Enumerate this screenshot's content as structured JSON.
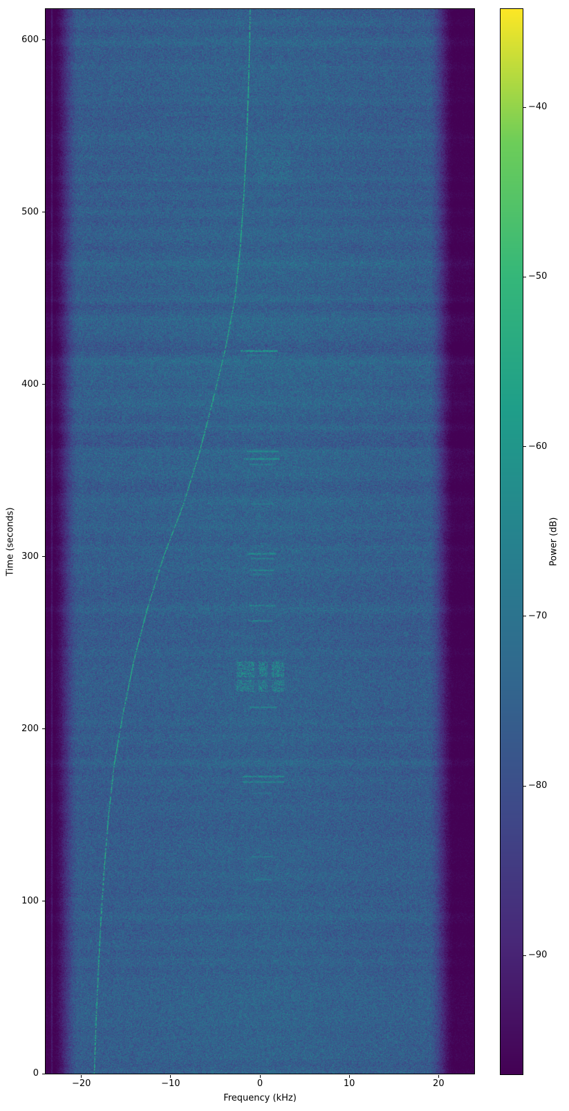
{
  "figure": {
    "xlabel": "Frequency (kHz)",
    "ylabel": "Time (seconds)",
    "colorbar_label": "Power (dB)"
  },
  "chart_data": {
    "type": "heatmap",
    "subtype": "spectrogram-waterfall",
    "title": "",
    "xlabel": "Frequency (kHz)",
    "ylabel": "Time (seconds)",
    "colorbar_label": "Power (dB)",
    "colormap": "viridis",
    "grid": false,
    "x_range_khz": [
      -24,
      24
    ],
    "y_range_s": [
      0,
      618
    ],
    "x_ticks": [
      {
        "value": -20,
        "label": "−20"
      },
      {
        "value": -10,
        "label": "−10"
      },
      {
        "value": 0,
        "label": "0"
      },
      {
        "value": 10,
        "label": "10"
      },
      {
        "value": 20,
        "label": "20"
      }
    ],
    "y_ticks": [
      {
        "value": 0,
        "label": "0"
      },
      {
        "value": 100,
        "label": "100"
      },
      {
        "value": 200,
        "label": "200"
      },
      {
        "value": 300,
        "label": "300"
      },
      {
        "value": 400,
        "label": "400"
      },
      {
        "value": 500,
        "label": "500"
      },
      {
        "value": 600,
        "label": "600"
      }
    ],
    "colorbar": {
      "vmin": -97,
      "vmax": -34.2,
      "ticks": [
        {
          "value": -40,
          "label": "−40"
        },
        {
          "value": -50,
          "label": "−50"
        },
        {
          "value": -60,
          "label": "−60"
        },
        {
          "value": -70,
          "label": "−70"
        },
        {
          "value": -80,
          "label": "−80"
        },
        {
          "value": -90,
          "label": "−90"
        }
      ]
    },
    "noise": {
      "mean_db": -76.5,
      "spread_db": 9,
      "center_boost_db": 1.5,
      "sparkle_prob": 0.012,
      "sparkle_boost_db": 6
    },
    "band_edges": {
      "left_rolloff_start_khz": -20.2,
      "left_rolloff_end_khz": -23.2,
      "right_rolloff_start_khz": 18.8,
      "right_rolloff_end_khz": 21.8,
      "floor_attenuation_db": 21,
      "edge_artifact_line_khz": -23.3,
      "edge_artifact_boost_db": 5
    },
    "row_bands": [
      [
        598,
        1.4
      ],
      [
        584,
        1.0
      ],
      [
        571,
        1.3
      ],
      [
        557,
        0.9
      ],
      [
        544,
        1.1
      ],
      [
        531,
        0.9
      ],
      [
        519,
        1.0
      ],
      [
        489,
        1.0
      ],
      [
        470,
        1.2
      ],
      [
        460,
        1.5
      ],
      [
        449,
        1.3
      ],
      [
        438,
        1.2
      ],
      [
        426,
        1.4
      ],
      [
        413,
        1.6
      ],
      [
        401,
        1.2
      ],
      [
        389,
        1.0
      ],
      [
        375,
        1.1
      ],
      [
        362,
        1.3
      ],
      [
        347,
        1.0
      ],
      [
        333,
        0.9
      ],
      [
        318,
        1.0
      ],
      [
        305,
        1.1
      ],
      [
        292,
        1.0
      ],
      [
        269,
        0.9
      ],
      [
        244,
        0.8
      ],
      [
        203,
        0.9
      ],
      [
        181,
        1.0
      ],
      [
        92,
        0.8
      ]
    ],
    "doppler_trace": {
      "level_db": -51,
      "dash_gap_prob": 0.24,
      "points_t_s_f_khz": [
        [
          0,
          -18.55
        ],
        [
          30,
          -18.35
        ],
        [
          60,
          -18.1
        ],
        [
          90,
          -17.8
        ],
        [
          120,
          -17.42
        ],
        [
          150,
          -16.95
        ],
        [
          180,
          -16.3
        ],
        [
          210,
          -15.3
        ],
        [
          240,
          -14.1
        ],
        [
          270,
          -12.6
        ],
        [
          300,
          -10.8
        ],
        [
          330,
          -8.6
        ],
        [
          360,
          -6.8
        ],
        [
          390,
          -5.3
        ],
        [
          420,
          -3.9
        ],
        [
          450,
          -2.8
        ],
        [
          480,
          -2.2
        ],
        [
          510,
          -1.8
        ],
        [
          540,
          -1.5
        ],
        [
          570,
          -1.3
        ],
        [
          600,
          -1.15
        ],
        [
          618,
          -1.1
        ]
      ]
    },
    "bursts_t_f0_f1_db": [
      [
        419.5,
        -2.2,
        1.9,
        -58
      ],
      [
        417.2,
        -1.5,
        1.3,
        -66
      ],
      [
        361.5,
        -1.5,
        2.0,
        -62
      ],
      [
        357.0,
        -1.8,
        2.2,
        -60
      ],
      [
        353.8,
        -1.2,
        1.6,
        -65
      ],
      [
        331.0,
        -1.0,
        1.5,
        -66
      ],
      [
        302.0,
        -1.5,
        1.8,
        -61
      ],
      [
        299.0,
        -1.0,
        1.5,
        -65
      ],
      [
        292.5,
        -1.2,
        1.5,
        -63
      ],
      [
        289.8,
        -0.8,
        1.2,
        -66
      ],
      [
        272.0,
        -1.2,
        1.6,
        -63
      ],
      [
        263.0,
        -1.3,
        1.4,
        -64
      ],
      [
        213.0,
        -1.2,
        1.8,
        -64
      ],
      [
        172.5,
        -1.9,
        2.6,
        -61
      ],
      [
        169.5,
        -1.9,
        2.6,
        -63
      ],
      [
        163.0,
        -0.8,
        1.2,
        -68
      ],
      [
        126.0,
        -1.0,
        1.4,
        -66
      ],
      [
        113.0,
        -0.8,
        1.2,
        -67
      ]
    ],
    "speckle_patches": [
      {
        "t0": 222,
        "t1": 228.5,
        "f0": -2.6,
        "f1": 2.6,
        "density": 0.45,
        "level": -64,
        "var": 7,
        "gaps": [
          -0.4,
          1.1
        ]
      },
      {
        "t0": 230.5,
        "t1": 239.5,
        "f0": -2.6,
        "f1": 2.6,
        "density": 0.45,
        "level": -63,
        "var": 7,
        "gaps": [
          -0.4,
          1.1
        ]
      },
      {
        "t0": 515,
        "t1": 536,
        "f0": -0.6,
        "f1": 3.4,
        "density": 0.22,
        "level": -70,
        "var": 5,
        "gaps": []
      },
      {
        "t0": 205,
        "t1": 212,
        "f0": -1.8,
        "f1": 1.8,
        "density": 0.18,
        "level": -71,
        "var": 4,
        "gaps": []
      }
    ],
    "vertical_faint_line": {
      "f_khz": 7.3,
      "t0": 430,
      "t1": 618,
      "boost_db": 2.2,
      "gap_prob": 0.3
    },
    "viridis_anchors": [
      [
        68,
        1,
        84
      ],
      [
        72,
        40,
        120
      ],
      [
        62,
        74,
        137
      ],
      [
        49,
        104,
        142
      ],
      [
        38,
        130,
        142
      ],
      [
        31,
        158,
        137
      ],
      [
        53,
        183,
        121
      ],
      [
        109,
        205,
        89
      ],
      [
        253,
        231,
        37
      ]
    ]
  }
}
